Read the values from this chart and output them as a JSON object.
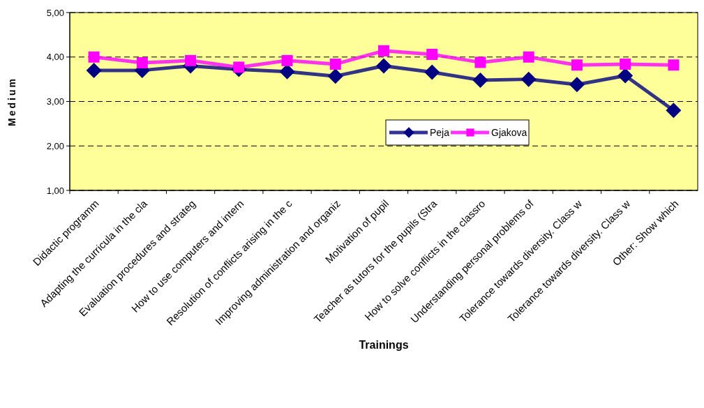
{
  "chart_data": {
    "type": "line",
    "xlabel": "Trainings",
    "ylabel": "Medium",
    "categories": [
      "Didactic programm",
      "Adapting the curricula in the cla",
      "Evaluation procedures and strateg",
      "How to use computers and intern",
      "Resolution of conflicts arising in the c",
      "Improving administration and organiz",
      "Motivation of pupil",
      "Teacher as tutors for the pupils (Stra",
      "How to solve conflicts in the classro",
      "Understanding personal problems of",
      "Tolerance towards diversity. Class w",
      "Tolerance towards diversity. Class w",
      "Other: Show which"
    ],
    "series": [
      {
        "name": "Peja",
        "color": "#000080",
        "marker": "diamond",
        "values": [
          3.7,
          3.7,
          3.8,
          3.72,
          3.67,
          3.57,
          3.8,
          3.66,
          3.48,
          3.5,
          3.38,
          3.58,
          2.8
        ]
      },
      {
        "name": "Gjakova",
        "color": "#ff00ff",
        "marker": "square",
        "values": [
          4.0,
          3.87,
          3.92,
          3.77,
          3.92,
          3.84,
          4.14,
          4.06,
          3.88,
          4.0,
          3.82,
          3.84,
          3.82
        ]
      }
    ],
    "ylim": [
      1,
      5
    ],
    "yticks": [
      {
        "value": 1,
        "label": "1,00"
      },
      {
        "value": 2,
        "label": "2,00"
      },
      {
        "value": 3,
        "label": "3,00"
      },
      {
        "value": 4,
        "label": "4,00"
      },
      {
        "value": 5,
        "label": "5,00"
      }
    ],
    "grid": "y",
    "legend": "right",
    "line_style": "solid"
  }
}
